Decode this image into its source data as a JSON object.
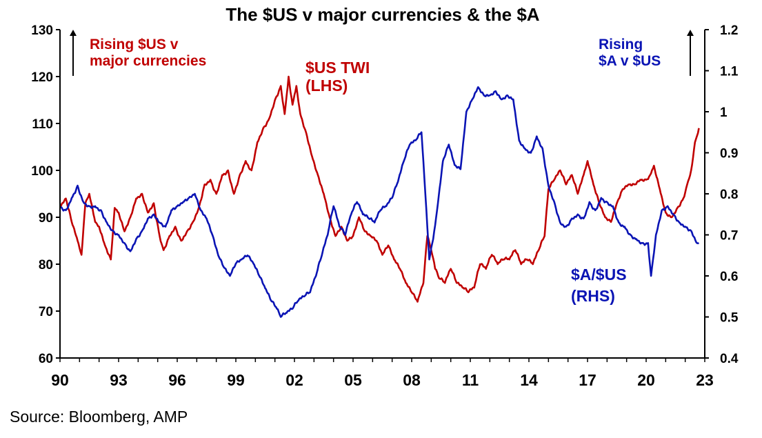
{
  "chart_data": {
    "type": "line",
    "title": "The $US v major currencies & the $A",
    "source": "Source: Bloomberg, AMP",
    "x_ticks": [
      "90",
      "93",
      "96",
      "99",
      "02",
      "05",
      "08",
      "11",
      "14",
      "17",
      "20",
      "23"
    ],
    "xlim": [
      1990.0,
      2023.0
    ],
    "y_left": {
      "ylim": [
        60,
        130
      ],
      "ticks": [
        "60",
        "70",
        "80",
        "90",
        "100",
        "110",
        "120",
        "130"
      ]
    },
    "y_right": {
      "ylim": [
        0.4,
        1.2
      ],
      "ticks": [
        "0.4",
        "0.5",
        "0.6",
        "0.7",
        "0.8",
        "0.9",
        "1",
        "1.1",
        "1.2"
      ]
    },
    "annotations": {
      "rising_us_1": "Rising $US v",
      "rising_us_2": "major currencies",
      "rising_a_1": "Rising",
      "rising_a_2": "$A v $US",
      "twi_1": "$US TWI",
      "twi_2": "(LHS)",
      "aud_1": "$A/$US",
      "aud_2": "(RHS)"
    },
    "colors": {
      "twi": "#c00000",
      "aud": "#0a14b4",
      "axis": "#000000"
    },
    "series": [
      {
        "axis": "left",
        "color": "#c00000",
        "x": [
          1990.0,
          1990.3,
          1990.6,
          1990.9,
          1991.1,
          1991.3,
          1991.5,
          1991.8,
          1992.0,
          1992.3,
          1992.6,
          1992.8,
          1993.0,
          1993.3,
          1993.6,
          1993.9,
          1994.2,
          1994.5,
          1994.8,
          1995.1,
          1995.3,
          1995.6,
          1995.9,
          1996.2,
          1996.5,
          1996.8,
          1997.1,
          1997.4,
          1997.7,
          1998.0,
          1998.3,
          1998.6,
          1998.9,
          1999.2,
          1999.5,
          1999.8,
          2000.1,
          2000.4,
          2000.7,
          2001.0,
          2001.3,
          2001.5,
          2001.7,
          2001.9,
          2002.1,
          2002.3,
          2002.6,
          2002.9,
          2003.2,
          2003.5,
          2003.8,
          2004.1,
          2004.4,
          2004.7,
          2005.0,
          2005.3,
          2005.6,
          2005.9,
          2006.2,
          2006.5,
          2006.8,
          2007.1,
          2007.4,
          2007.7,
          2008.0,
          2008.3,
          2008.6,
          2008.8,
          2009.0,
          2009.2,
          2009.4,
          2009.7,
          2010.0,
          2010.3,
          2010.6,
          2010.9,
          2011.2,
          2011.5,
          2011.8,
          2012.1,
          2012.4,
          2012.7,
          2013.0,
          2013.3,
          2013.6,
          2013.9,
          2014.2,
          2014.5,
          2014.8,
          2015.0,
          2015.3,
          2015.6,
          2015.9,
          2016.2,
          2016.5,
          2016.8,
          2017.0,
          2017.3,
          2017.6,
          2017.9,
          2018.2,
          2018.5,
          2018.8,
          2019.1,
          2019.4,
          2019.7,
          2020.0,
          2020.2,
          2020.4,
          2020.7,
          2021.0,
          2021.3,
          2021.6,
          2021.9,
          2022.1,
          2022.3,
          2022.5,
          2022.7
        ],
        "values": [
          92,
          94,
          89,
          85,
          82,
          93,
          95,
          89,
          88,
          84,
          81,
          92,
          91,
          87,
          90,
          94,
          95,
          91,
          93,
          86,
          83,
          86,
          88,
          85,
          87,
          89,
          92,
          97,
          98,
          95,
          99,
          100,
          95,
          99,
          102,
          100,
          106,
          109,
          111,
          115,
          118,
          112,
          120,
          114,
          118,
          112,
          108,
          103,
          99,
          95,
          90,
          86,
          88,
          85,
          86,
          90,
          87,
          86,
          85,
          82,
          84,
          81,
          79,
          76,
          74,
          72,
          76,
          86,
          83,
          79,
          77,
          76,
          79,
          76,
          75,
          74,
          75,
          80,
          79,
          82,
          80,
          81,
          81,
          83,
          80,
          81,
          80,
          83,
          86,
          96,
          98,
          100,
          97,
          99,
          95,
          99,
          102,
          97,
          93,
          90,
          89,
          93,
          96,
          97,
          97,
          98,
          98,
          99,
          101,
          96,
          91,
          90,
          92,
          94,
          97,
          100,
          106,
          109
        ]
      },
      {
        "axis": "right",
        "color": "#0a14b4",
        "x": [
          1990.0,
          1990.3,
          1990.6,
          1990.9,
          1991.2,
          1991.5,
          1991.8,
          1992.1,
          1992.4,
          1992.7,
          1993.0,
          1993.3,
          1993.6,
          1993.9,
          1994.2,
          1994.5,
          1994.8,
          1995.1,
          1995.4,
          1995.7,
          1996.0,
          1996.3,
          1996.6,
          1996.9,
          1997.2,
          1997.5,
          1997.8,
          1998.1,
          1998.4,
          1998.7,
          1999.0,
          1999.3,
          1999.6,
          1999.9,
          2000.2,
          2000.5,
          2000.8,
          2001.1,
          2001.3,
          2001.6,
          2001.9,
          2002.2,
          2002.5,
          2002.8,
          2003.1,
          2003.4,
          2003.7,
          2004.0,
          2004.3,
          2004.6,
          2004.9,
          2005.2,
          2005.5,
          2005.8,
          2006.1,
          2006.4,
          2006.7,
          2007.0,
          2007.3,
          2007.6,
          2007.9,
          2008.2,
          2008.5,
          2008.7,
          2008.9,
          2009.1,
          2009.3,
          2009.6,
          2009.9,
          2010.2,
          2010.5,
          2010.8,
          2011.1,
          2011.4,
          2011.7,
          2012.0,
          2012.3,
          2012.6,
          2012.9,
          2013.2,
          2013.5,
          2013.8,
          2014.1,
          2014.4,
          2014.7,
          2015.0,
          2015.3,
          2015.6,
          2015.9,
          2016.2,
          2016.5,
          2016.8,
          2017.1,
          2017.4,
          2017.7,
          2018.0,
          2018.3,
          2018.6,
          2018.9,
          2019.2,
          2019.5,
          2019.8,
          2020.1,
          2020.25,
          2020.5,
          2020.8,
          2021.1,
          2021.4,
          2021.7,
          2022.0,
          2022.3,
          2022.6,
          2022.7
        ],
        "values": [
          0.77,
          0.76,
          0.79,
          0.82,
          0.78,
          0.77,
          0.77,
          0.76,
          0.73,
          0.71,
          0.7,
          0.68,
          0.66,
          0.69,
          0.71,
          0.74,
          0.75,
          0.73,
          0.72,
          0.76,
          0.77,
          0.78,
          0.79,
          0.8,
          0.76,
          0.74,
          0.7,
          0.65,
          0.62,
          0.6,
          0.63,
          0.64,
          0.65,
          0.63,
          0.6,
          0.57,
          0.54,
          0.52,
          0.5,
          0.51,
          0.52,
          0.54,
          0.55,
          0.56,
          0.6,
          0.65,
          0.7,
          0.77,
          0.72,
          0.7,
          0.75,
          0.78,
          0.75,
          0.74,
          0.73,
          0.76,
          0.77,
          0.79,
          0.83,
          0.88,
          0.92,
          0.93,
          0.95,
          0.8,
          0.64,
          0.69,
          0.76,
          0.88,
          0.92,
          0.87,
          0.86,
          1.0,
          1.03,
          1.06,
          1.04,
          1.04,
          1.05,
          1.03,
          1.04,
          1.03,
          0.93,
          0.91,
          0.9,
          0.94,
          0.91,
          0.82,
          0.78,
          0.73,
          0.72,
          0.74,
          0.75,
          0.74,
          0.78,
          0.76,
          0.79,
          0.78,
          0.77,
          0.73,
          0.72,
          0.7,
          0.69,
          0.68,
          0.68,
          0.6,
          0.7,
          0.76,
          0.77,
          0.75,
          0.73,
          0.72,
          0.71,
          0.68,
          0.68
        ]
      }
    ]
  }
}
